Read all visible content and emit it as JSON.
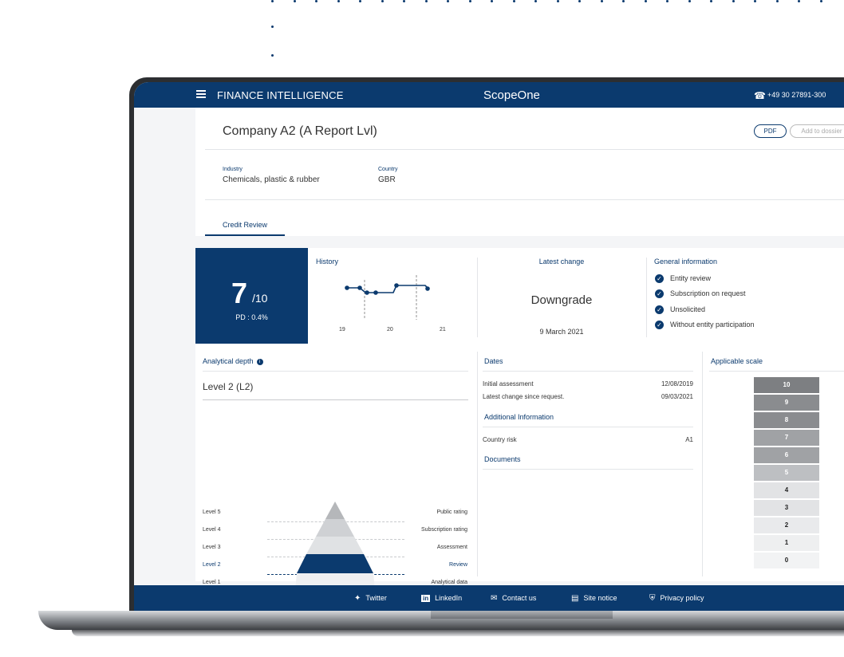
{
  "header": {
    "brand": "FINANCE INTELLIGENCE",
    "title": "ScopeOne",
    "phone": "+49 30 27891-300",
    "menu_icon": "hamburger-icon",
    "phone_icon": "phone-icon"
  },
  "company": {
    "name": "Company A2 (A Report Lvl)",
    "pdf_label": "PDF",
    "dossier_label": "Add to dossier",
    "industry_label": "Industry",
    "industry_value": "Chemicals, plastic & rubber",
    "country_label": "Country",
    "country_value": "GBR"
  },
  "tabs": [
    {
      "label": "Credit Review",
      "active": true
    }
  ],
  "score": {
    "value": "7",
    "denominator": "/10",
    "pd": "PD : 0.4%"
  },
  "history": {
    "title": "History",
    "x_labels": [
      "19",
      "20",
      "21"
    ]
  },
  "latest_change": {
    "title": "Latest change",
    "value": "Downgrade",
    "date": "9 March 2021"
  },
  "general_info": {
    "title": "General information",
    "items": [
      "Entity review",
      "Subscription on request",
      "Unsolicited",
      "Without entity participation"
    ]
  },
  "analytical_depth": {
    "title": "Analytical depth",
    "current": "Level 2 (L2)",
    "levels": [
      {
        "left": "Level 5",
        "right": "Public rating",
        "active": false
      },
      {
        "left": "Level 4",
        "right": "Subscription rating",
        "active": false
      },
      {
        "left": "Level 3",
        "right": "Assessment",
        "active": false
      },
      {
        "left": "Level 2",
        "right": "Review",
        "active": true
      },
      {
        "left": "Level 1",
        "right": "Analytical data",
        "active": false
      }
    ]
  },
  "dates": {
    "title": "Dates",
    "rows": [
      {
        "label": "Initial assessment",
        "value": "12/08/2019"
      },
      {
        "label": "Latest change since request.",
        "value": "09/03/2021"
      }
    ]
  },
  "additional_info": {
    "title": "Additional Information",
    "rows": [
      {
        "label": "Country risk",
        "value": "A1"
      }
    ]
  },
  "documents": {
    "title": "Documents"
  },
  "scale": {
    "title": "Applicable scale",
    "values": [
      "10",
      "9",
      "8",
      "7",
      "6",
      "5",
      "4",
      "3",
      "2",
      "1",
      "0"
    ]
  },
  "footer": {
    "items": [
      {
        "label": "Twitter",
        "icon": "twitter-icon"
      },
      {
        "label": "LinkedIn",
        "icon": "linkedin-icon"
      },
      {
        "label": "Contact us",
        "icon": "mail-icon"
      },
      {
        "label": "Site notice",
        "icon": "notice-icon"
      },
      {
        "label": "Privacy policy",
        "icon": "shield-icon"
      }
    ]
  },
  "colors": {
    "brand": "#0b3a6e"
  }
}
